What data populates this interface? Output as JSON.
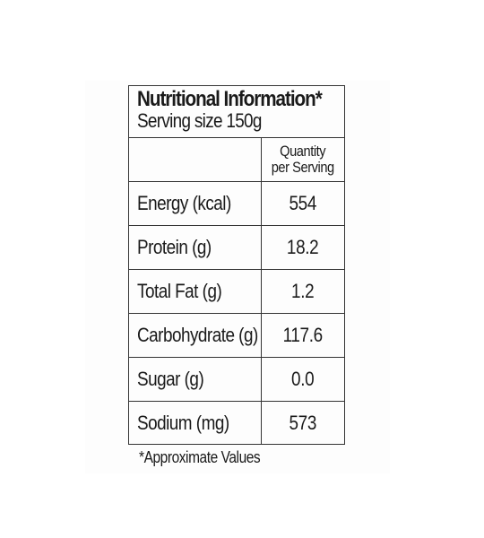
{
  "label": {
    "title": "Nutritional Information*",
    "serving": "Serving size 150g",
    "column_header_line1": "Quantity",
    "column_header_line2": "per Serving",
    "rows": [
      {
        "name": "Energy (kcal)",
        "value": "554"
      },
      {
        "name": "Protein (g)",
        "value": "18.2"
      },
      {
        "name": "Total Fat (g)",
        "value": "1.2"
      },
      {
        "name": "Carbohydrate (g)",
        "value": "117.6"
      },
      {
        "name": "Sugar (g)",
        "value": "0.0"
      },
      {
        "name": "Sodium (mg)",
        "value": "573"
      }
    ],
    "footnote": "*Approximate Values"
  }
}
